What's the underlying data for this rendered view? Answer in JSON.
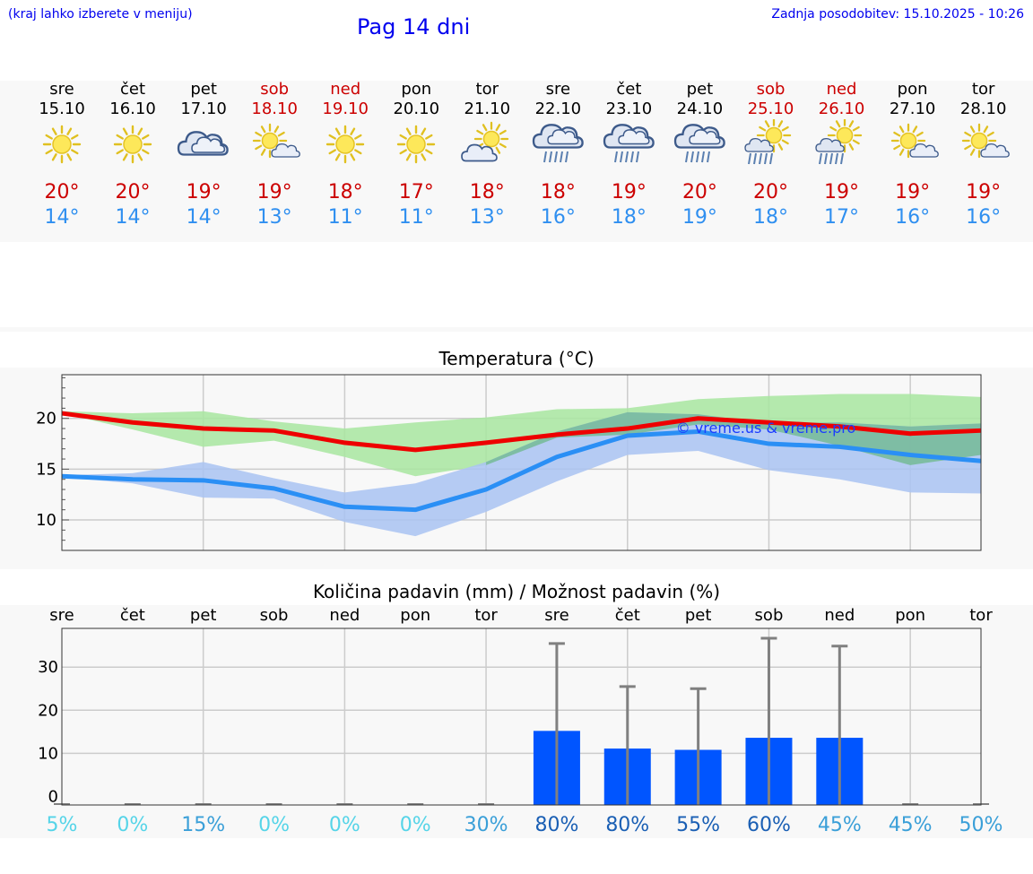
{
  "header": {
    "hint": "(kraj lahko izberete v meniju)",
    "title": "Pag 14 dni",
    "updated": "Zadnja posodobitev: 15.10.2025 - 10:26"
  },
  "days": [
    {
      "name": "sre",
      "date": "15.10",
      "weekend": false,
      "icon": "sun-icon",
      "tmax": "20°",
      "tmin": "14°"
    },
    {
      "name": "čet",
      "date": "16.10",
      "weekend": false,
      "icon": "sun-icon",
      "tmax": "20°",
      "tmin": "14°"
    },
    {
      "name": "pet",
      "date": "17.10",
      "weekend": false,
      "icon": "cloud-icon",
      "tmax": "19°",
      "tmin": "14°"
    },
    {
      "name": "sob",
      "date": "18.10",
      "weekend": true,
      "icon": "sun-cloud-icon",
      "tmax": "19°",
      "tmin": "13°"
    },
    {
      "name": "ned",
      "date": "19.10",
      "weekend": true,
      "icon": "sun-icon",
      "tmax": "18°",
      "tmin": "11°"
    },
    {
      "name": "pon",
      "date": "20.10",
      "weekend": false,
      "icon": "sun-icon",
      "tmax": "17°",
      "tmin": "11°"
    },
    {
      "name": "tor",
      "date": "21.10",
      "weekend": false,
      "icon": "cloud-sun-icon",
      "tmax": "18°",
      "tmin": "13°"
    },
    {
      "name": "sre",
      "date": "22.10",
      "weekend": false,
      "icon": "rain-cloud-icon",
      "tmax": "18°",
      "tmin": "16°"
    },
    {
      "name": "čet",
      "date": "23.10",
      "weekend": false,
      "icon": "rain-cloud-icon",
      "tmax": "19°",
      "tmin": "18°"
    },
    {
      "name": "pet",
      "date": "24.10",
      "weekend": false,
      "icon": "rain-cloud-icon",
      "tmax": "20°",
      "tmin": "19°"
    },
    {
      "name": "sob",
      "date": "25.10",
      "weekend": true,
      "icon": "sun-rain-icon",
      "tmax": "20°",
      "tmin": "18°"
    },
    {
      "name": "ned",
      "date": "26.10",
      "weekend": true,
      "icon": "sun-rain-icon",
      "tmax": "19°",
      "tmin": "17°"
    },
    {
      "name": "pon",
      "date": "27.10",
      "weekend": false,
      "icon": "sun-cloud-icon",
      "tmax": "19°",
      "tmin": "16°"
    },
    {
      "name": "tor",
      "date": "28.10",
      "weekend": false,
      "icon": "sun-cloud-icon",
      "tmax": "19°",
      "tmin": "16°"
    }
  ],
  "colors": {
    "max": "#ee0000",
    "min": "#2a8ff5",
    "maxBand": "#a8e6a0",
    "minBand": "#a9c3f2",
    "bar": "#0055ff",
    "whisker": "#808080"
  },
  "chart_data": [
    {
      "type": "line",
      "title": "Temperatura (°C)",
      "x": [
        0,
        1,
        2,
        3,
        4,
        5,
        6,
        7,
        8,
        9,
        10,
        11,
        12,
        13
      ],
      "yticks": [
        10,
        15,
        20
      ],
      "ylim": [
        7,
        24.3
      ],
      "watermark": "© vreme.us & vreme.pro",
      "grid": true,
      "series": [
        {
          "role": "max",
          "values": [
            20.5,
            19.6,
            19.0,
            18.8,
            17.6,
            16.9,
            17.6,
            18.4,
            19.0,
            20.0,
            19.6,
            19.2,
            18.5,
            18.8
          ],
          "band_low": [
            20.5,
            18.9,
            17.2,
            17.8,
            16.2,
            14.3,
            15.4,
            18.1,
            18.4,
            19.4,
            18.9,
            17.3,
            15.4,
            16.4
          ],
          "band_high": [
            20.7,
            20.5,
            20.7,
            19.7,
            19.0,
            19.6,
            20.1,
            20.9,
            21.0,
            21.9,
            22.2,
            22.4,
            22.4,
            22.1
          ]
        },
        {
          "role": "min",
          "values": [
            14.3,
            14.0,
            13.9,
            13.1,
            11.3,
            11.0,
            13.0,
            16.2,
            18.3,
            18.7,
            17.5,
            17.2,
            16.4,
            15.8
          ],
          "band_low": [
            14.2,
            13.6,
            12.2,
            12.1,
            9.8,
            8.4,
            10.8,
            13.8,
            16.4,
            16.8,
            14.9,
            14.0,
            12.7,
            12.6
          ],
          "band_high": [
            14.4,
            14.6,
            15.7,
            14.1,
            12.7,
            13.6,
            15.7,
            18.7,
            20.6,
            20.4,
            19.5,
            19.6,
            19.2,
            19.5
          ]
        }
      ]
    },
    {
      "type": "bar",
      "title": "Količina padavin (mm) / Možnost padavin (%)",
      "categories": [
        "sre",
        "čet",
        "pet",
        "sob",
        "ned",
        "pon",
        "tor",
        "sre",
        "čet",
        "pet",
        "sob",
        "ned",
        "pon",
        "tor"
      ],
      "values": [
        0,
        0,
        0,
        0,
        0,
        0,
        0,
        15.2,
        11.1,
        10.8,
        13.6,
        13.6,
        0,
        0
      ],
      "error_high": [
        0,
        0,
        0,
        0,
        0,
        0,
        0,
        35.5,
        25.5,
        25.0,
        36.7,
        34.9,
        0,
        0
      ],
      "yticks": [
        0,
        10,
        20,
        30
      ],
      "ylim": [
        -2,
        39
      ],
      "probabilities": [
        "5%",
        "0%",
        "15%",
        "0%",
        "0%",
        "0%",
        "30%",
        "80%",
        "80%",
        "55%",
        "60%",
        "45%",
        "45%",
        "50%"
      ],
      "probability_colors": [
        "#55d4e8",
        "#55d4e8",
        "#3a9fd8",
        "#55d4e8",
        "#55d4e8",
        "#55d4e8",
        "#3a9fd8",
        "#1a5fb4",
        "#1a5fb4",
        "#1a5fb4",
        "#1a5fb4",
        "#3a9fd8",
        "#3a9fd8",
        "#3a9fd8"
      ]
    }
  ]
}
